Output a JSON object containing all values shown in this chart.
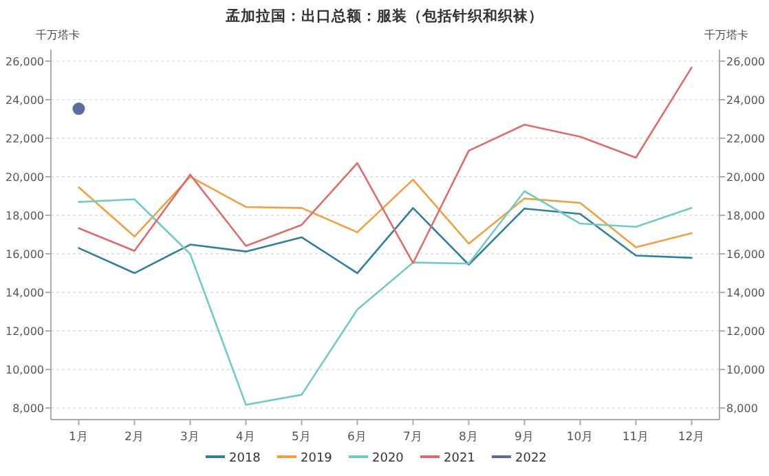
{
  "chart_data": {
    "type": "line",
    "title": "孟加拉国：出口总额：服装（包括针织和织袜）",
    "ylabel": "千万塔卡",
    "y2label": "千万塔卡",
    "categories": [
      "1月",
      "2月",
      "3月",
      "4月",
      "5月",
      "6月",
      "7月",
      "8月",
      "9月",
      "10月",
      "11月",
      "12月"
    ],
    "series": [
      {
        "name": "2018",
        "color": "#2f7fa0",
        "values": [
          16300,
          15000,
          16480,
          16120,
          16860,
          15000,
          18380,
          15440,
          18350,
          18070,
          15910,
          15790
        ]
      },
      {
        "name": "2019",
        "color": "#f0a03c",
        "values": [
          19450,
          16900,
          20000,
          18430,
          18380,
          17120,
          19850,
          16530,
          18870,
          18640,
          16340,
          17070
        ]
      },
      {
        "name": "2020",
        "color": "#70cbc6",
        "values": [
          18690,
          18830,
          15990,
          8170,
          8690,
          13110,
          15550,
          15490,
          19250,
          17570,
          17400,
          18380
        ]
      },
      {
        "name": "2021",
        "color": "#e06b6b",
        "values": [
          17330,
          16150,
          20110,
          16410,
          17500,
          20710,
          15520,
          21350,
          22700,
          22080,
          20990,
          25670
        ]
      },
      {
        "name": "2022",
        "color": "#5c6c9e",
        "marker": "circle",
        "values": [
          23530,
          null,
          null,
          null,
          null,
          null,
          null,
          null,
          null,
          null,
          null,
          null
        ]
      }
    ],
    "ylim": [
      7400,
      26600
    ],
    "yticks": [
      {
        "value": 8000,
        "label": "8,000"
      },
      {
        "value": 10000,
        "label": "10,000"
      },
      {
        "value": 12000,
        "label": "12,000"
      },
      {
        "value": 14000,
        "label": "14,000"
      },
      {
        "value": 16000,
        "label": "16,000"
      },
      {
        "value": 18000,
        "label": "18,000"
      },
      {
        "value": 20000,
        "label": "20,000"
      },
      {
        "value": 22000,
        "label": "22,000"
      },
      {
        "value": 24000,
        "label": "24,000"
      },
      {
        "value": 26000,
        "label": "26,000"
      }
    ],
    "y2lim": [
      7400,
      26600
    ],
    "y2ticks": [
      {
        "value": 8000,
        "label": "8,000"
      },
      {
        "value": 10000,
        "label": "10,000"
      },
      {
        "value": 12000,
        "label": "12,000"
      },
      {
        "value": 14000,
        "label": "14,000"
      },
      {
        "value": 16000,
        "label": "16,000"
      },
      {
        "value": 18000,
        "label": "18,000"
      },
      {
        "value": 20000,
        "label": "20,000"
      },
      {
        "value": 22000,
        "label": "22,000"
      },
      {
        "value": 24000,
        "label": "24,000"
      },
      {
        "value": 26000,
        "label": "26,000"
      }
    ],
    "grid": "y",
    "legend": "bottom",
    "line_style": "solid"
  }
}
